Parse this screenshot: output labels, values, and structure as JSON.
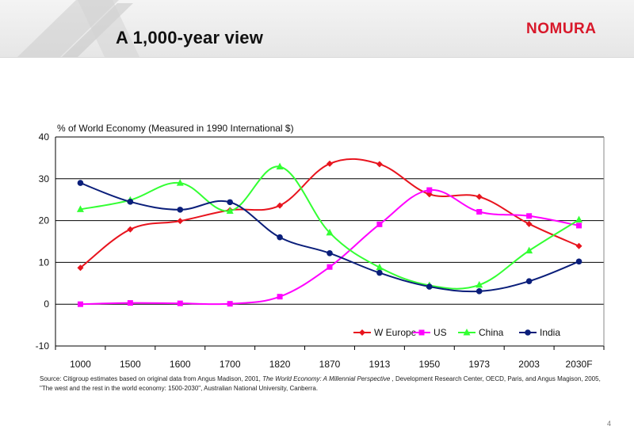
{
  "slide": {
    "title": "A 1,000-year view",
    "logo_text": "NOMURA",
    "page_number": "4",
    "source_parts": [
      "Source: Citigroup estimates based on original data from Angus Madison, 2001, ",
      "The World Economy: A Millennial Perspective",
      " , Development Research Center, OECD, Paris, and Angus Magison, 2005, \"The west and the rest in the world economy: 1500-2030\", Australian National University, Canberra."
    ]
  },
  "colors": {
    "brand": "#d8182a",
    "W Europe": "#e8141e",
    "US": "#ff00ff",
    "China": "#33ff33",
    "India": "#0a1e7a"
  },
  "chart_data": {
    "type": "line",
    "title": "",
    "ylabel": "% of World Economy (Measured in 1990 International $)",
    "xlabel": "",
    "categories": [
      "1000",
      "1500",
      "1600",
      "1700",
      "1820",
      "1870",
      "1913",
      "1950",
      "1973",
      "2003",
      "2030F"
    ],
    "ylim": [
      -10,
      40
    ],
    "yticks": [
      -10,
      0,
      10,
      20,
      30,
      40
    ],
    "grid": true,
    "legend_position": "bottom-right",
    "series": [
      {
        "name": "W Europe",
        "marker": "diamond",
        "values": [
          8.7,
          17.9,
          19.9,
          22.5,
          23.6,
          33.6,
          33.5,
          26.3,
          25.7,
          19.2,
          13.9
        ]
      },
      {
        "name": "US",
        "marker": "square",
        "values": [
          0.0,
          0.3,
          0.2,
          0.1,
          1.8,
          8.9,
          19.1,
          27.3,
          22.1,
          21.1,
          18.8
        ]
      },
      {
        "name": "China",
        "marker": "triangle",
        "values": [
          22.7,
          24.9,
          29.0,
          22.3,
          32.9,
          17.1,
          8.8,
          4.5,
          4.6,
          12.8,
          20.2
        ]
      },
      {
        "name": "India",
        "marker": "circle",
        "values": [
          29.0,
          24.5,
          22.6,
          24.4,
          16.0,
          12.2,
          7.5,
          4.2,
          3.1,
          5.5,
          10.2
        ]
      }
    ]
  }
}
